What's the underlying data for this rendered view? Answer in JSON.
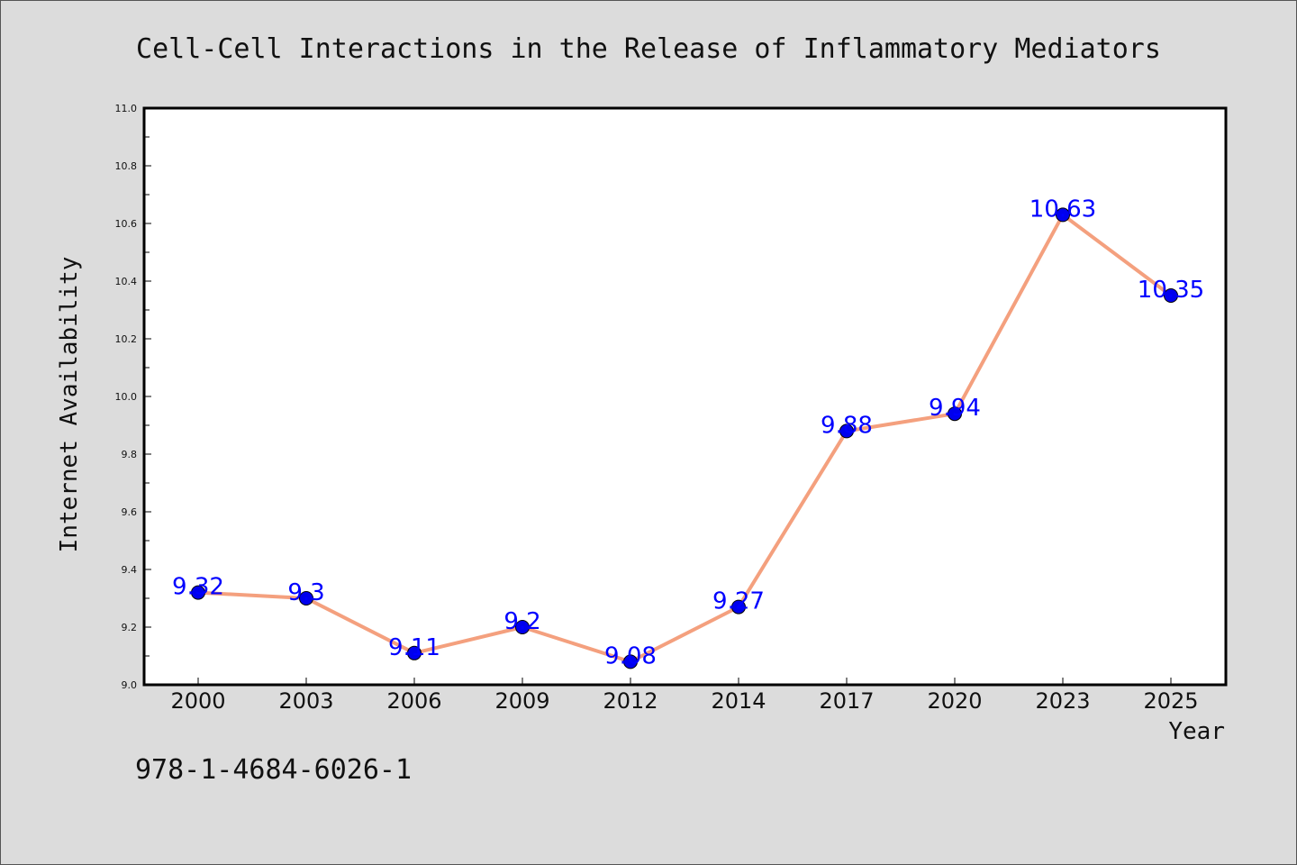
{
  "chart_data": {
    "type": "line",
    "title": "Cell-Cell Interactions in the Release of Inflammatory Mediators",
    "xlabel": "Year",
    "ylabel": "Internet Availability",
    "categories": [
      "2000",
      "2003",
      "2006",
      "2009",
      "2012",
      "2014",
      "2017",
      "2020",
      "2023",
      "2025"
    ],
    "values": [
      9.32,
      9.3,
      9.11,
      9.2,
      9.08,
      9.27,
      9.88,
      9.94,
      10.63,
      10.35
    ],
    "data_labels": [
      "9.32",
      "9.3",
      "9.11",
      "9.2",
      "9.08",
      "9.27",
      "9.88",
      "9.94",
      "10.63",
      "10.35"
    ],
    "ylim": [
      9.0,
      11.0
    ],
    "yticks": [
      "9.0",
      "9.2",
      "9.4",
      "9.6",
      "9.8",
      "10.0",
      "10.2",
      "10.4",
      "10.6",
      "10.8",
      "11.0"
    ],
    "grid": false,
    "line_color": "#f4a07e",
    "marker_color": "#0000ee",
    "label_color": "#0000ff"
  },
  "footer": {
    "isbn": "978-1-4684-6026-1"
  }
}
